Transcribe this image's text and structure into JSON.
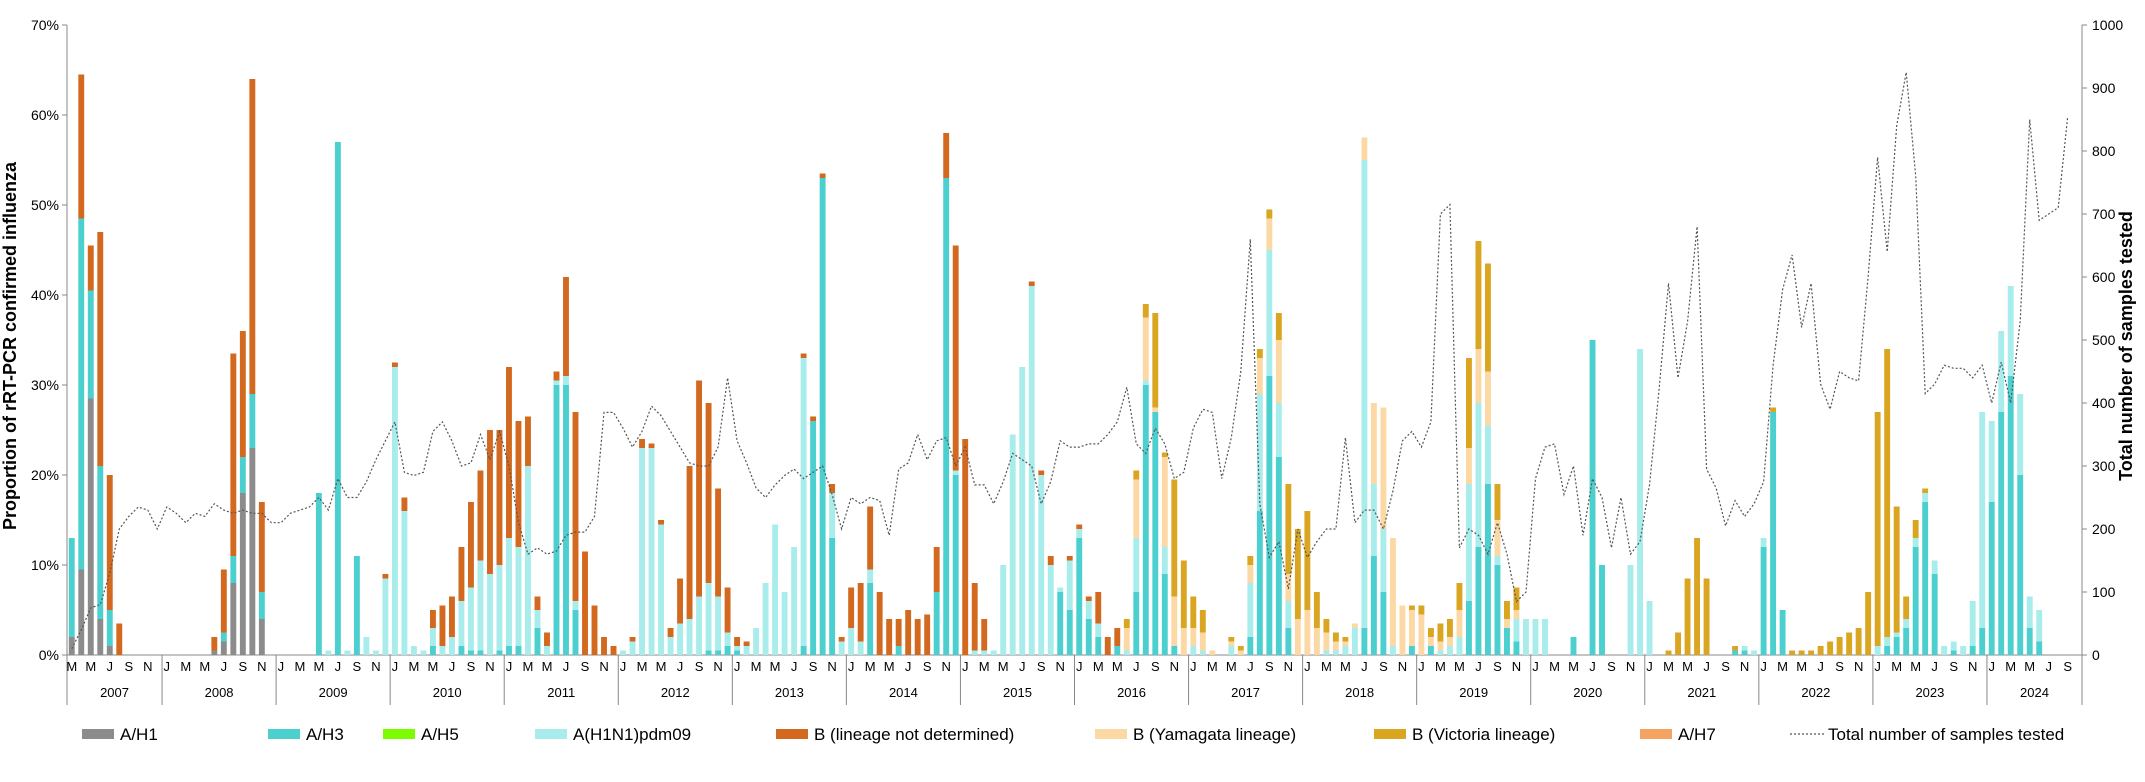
{
  "chart_data": {
    "type": "bar",
    "subtype": "stacked bar with secondary line",
    "ylabel_left": "Proportion of rRT-PCR confirmed influenza",
    "ylabel_right": "Total number of samples tested",
    "ylim_left": [
      0,
      70
    ],
    "ylim_right": [
      0,
      1000
    ],
    "yticks_left": [
      "0%",
      "10%",
      "20%",
      "30%",
      "40%",
      "50%",
      "60%",
      "70%"
    ],
    "yticks_right": [
      "0",
      "100",
      "200",
      "300",
      "400",
      "500",
      "600",
      "700",
      "800",
      "900",
      "1000"
    ],
    "month_labels": [
      "J",
      "M",
      "M",
      "J",
      "S",
      "N"
    ],
    "years": [
      "2007",
      "2008",
      "2009",
      "2010",
      "2011",
      "2012",
      "2013",
      "2014",
      "2015",
      "2016",
      "2017",
      "2018",
      "2019",
      "2020",
      "2021",
      "2022",
      "2023",
      "2024"
    ],
    "first_year_start_month": 3,
    "last_year_end_month": 10,
    "legend_position": "bottom",
    "colors": {
      "A/H1": "#8c8c8c",
      "A/H3": "#4ccfcf",
      "A/H5": "#7cfc00",
      "A(H1N1)pdm09": "#a8ecec",
      "B (lineage not determined)": "#d2691e",
      "B (Yamagata lineage)": "#fcd9a4",
      "B (Victoria lineage)": "#daa520",
      "A/H7": "#f4a460",
      "line": "#555555"
    },
    "series": [
      {
        "name": "A/H1",
        "color": "#8c8c8c",
        "values_by_index": {
          "0": 2,
          "1": 9.5,
          "2": 28.5,
          "3": 4,
          "4": 1,
          "15": 0.5,
          "16": 1.5,
          "17": 8,
          "18": 18,
          "19": 23,
          "20": 4
        }
      },
      {
        "name": "A/H3",
        "color": "#4ccfcf",
        "values_by_index": {
          "0": 11,
          "1": 39,
          "2": 12,
          "3": 17,
          "4": 4,
          "16": 1,
          "17": 3,
          "18": 4,
          "19": 6,
          "20": 3,
          "26": 18,
          "28": 57,
          "30": 11,
          "38": 1,
          "41": 1,
          "42": 0.5,
          "43": 0.5,
          "45": 0.5,
          "46": 1,
          "47": 1,
          "49": 3,
          "51": 30,
          "52": 30,
          "53": 5,
          "67": 0.5,
          "68": 0.5,
          "69": 1,
          "70": 0.5,
          "77": 1,
          "78": 26,
          "79": 53,
          "80": 13,
          "84": 8,
          "87": 1,
          "91": 7,
          "92": 53,
          "93": 20,
          "104": 7,
          "105": 5,
          "106": 13,
          "107": 4,
          "108": 2,
          "110": 1,
          "112": 7,
          "113": 30,
          "114": 27,
          "115": 9,
          "116": 1,
          "124": 2,
          "125": 16,
          "126": 31,
          "127": 22,
          "128": 3,
          "136": 3,
          "137": 11,
          "138": 7,
          "141": 1,
          "143": 1,
          "147": 6,
          "148": 12,
          "149": 19,
          "150": 10,
          "151": 3,
          "152": 1.5,
          "158": 2,
          "160": 35,
          "161": 10,
          "175": 0.5,
          "176": 0.5,
          "178": 12,
          "179": 27,
          "180": 5,
          "191": 1,
          "192": 2,
          "193": 3,
          "194": 12,
          "195": 17,
          "196": 9,
          "198": 0.5,
          "200": 1,
          "201": 3,
          "202": 17,
          "203": 27,
          "204": 31,
          "205": 20,
          "206": 3,
          "207": 1.5
        }
      },
      {
        "name": "A/H5",
        "color": "#7cfc00",
        "values_by_index": {}
      },
      {
        "name": "A(H1N1)pdm09",
        "color": "#a8ecec",
        "values_by_index": {
          "27": 0.5,
          "29": 0.5,
          "31": 2,
          "32": 0.5,
          "33": 8.5,
          "34": 32,
          "35": 16,
          "36": 1,
          "37": 0.5,
          "38": 2,
          "39": 1,
          "40": 2,
          "41": 5,
          "42": 7,
          "43": 10,
          "44": 9,
          "45": 9.5,
          "46": 12,
          "47": 11,
          "48": 21,
          "49": 2,
          "50": 1,
          "51": 0.5,
          "52": 1,
          "53": 1,
          "58": 0.5,
          "59": 1.5,
          "60": 23,
          "61": 23,
          "62": 14.5,
          "63": 2,
          "64": 3.5,
          "65": 4,
          "66": 6.5,
          "67": 7.5,
          "68": 6,
          "69": 1.5,
          "70": 0.5,
          "71": 1,
          "72": 3,
          "73": 8,
          "74": 14.5,
          "75": 7,
          "76": 12,
          "77": 32,
          "80": 5,
          "81": 1.5,
          "82": 3,
          "83": 1.5,
          "84": 1.5,
          "93": 0.5,
          "95": 0.5,
          "96": 0.5,
          "97": 0.5,
          "98": 10,
          "99": 24.5,
          "100": 32,
          "101": 41,
          "102": 20,
          "103": 10,
          "104": 0.5,
          "105": 5.5,
          "106": 1,
          "107": 2,
          "108": 1.5,
          "111": 0.5,
          "112": 6,
          "113": 0.5,
          "115": 3,
          "118": 1,
          "119": 0.5,
          "122": 1,
          "124": 6,
          "125": 13,
          "126": 14,
          "127": 6,
          "128": 3,
          "132": 0.5,
          "133": 0.5,
          "134": 1,
          "135": 3,
          "136": 52,
          "137": 8,
          "138": 7,
          "139": 1,
          "144": 0.5,
          "145": 1,
          "146": 2,
          "147": 13,
          "148": 16,
          "149": 6.5,
          "150": 1,
          "152": 2.5,
          "153": 4,
          "154": 4,
          "155": 4,
          "164": 10,
          "165": 34,
          "166": 6,
          "176": 0.5,
          "177": 0.5,
          "178": 1,
          "190": 1,
          "191": 1,
          "192": 0.5,
          "193": 1,
          "194": 1,
          "195": 1,
          "196": 1.5,
          "197": 1,
          "198": 1,
          "199": 1,
          "200": 5,
          "201": 24,
          "202": 9,
          "203": 9,
          "204": 10,
          "205": 9,
          "206": 3.5,
          "207": 3.5
        }
      },
      {
        "name": "B (lineage not determined)",
        "color": "#d2691e",
        "values_by_index": {
          "0": 0,
          "1": 16,
          "2": 5,
          "3": 26,
          "4": 15,
          "5": 3.5,
          "15": 1.5,
          "16": 7,
          "17": 22.5,
          "18": 14,
          "19": 35,
          "20": 10,
          "33": 0.5,
          "34": 0.5,
          "35": 1.5,
          "38": 2,
          "39": 4.5,
          "40": 4.5,
          "41": 6,
          "42": 9.5,
          "43": 10,
          "44": 16,
          "45": 15,
          "46": 19,
          "47": 14,
          "48": 5.5,
          "49": 1.5,
          "50": 1.5,
          "51": 1,
          "52": 11,
          "53": 21,
          "54": 11.5,
          "55": 5.5,
          "56": 2,
          "57": 1,
          "59": 0.5,
          "60": 1,
          "61": 0.5,
          "62": 0.5,
          "63": 1,
          "64": 5,
          "65": 17,
          "66": 24,
          "67": 20,
          "68": 12,
          "69": 5,
          "70": 1,
          "71": 0.5,
          "77": 0.5,
          "78": 0.5,
          "79": 0.5,
          "80": 1,
          "81": 0.5,
          "82": 4.5,
          "83": 6.5,
          "84": 7,
          "85": 7,
          "86": 4,
          "87": 3,
          "88": 5,
          "89": 4,
          "90": 4.5,
          "91": 5,
          "92": 5,
          "93": 25,
          "94": 24,
          "95": 7.5,
          "96": 3.5,
          "97": 0,
          "101": 0.5,
          "102": 0.5,
          "103": 1,
          "104": 0,
          "105": 0.5,
          "106": 0.5,
          "107": 0.5,
          "108": 3.5,
          "109": 2,
          "110": 2
        }
      },
      {
        "name": "B (Yamagata lineage)",
        "color": "#fcd9a4",
        "values_by_index": {
          "111": 2.5,
          "112": 6.5,
          "113": 7,
          "114": 0.5,
          "115": 10,
          "116": 5.5,
          "117": 3,
          "118": 2,
          "119": 2,
          "120": 0.5,
          "122": 0.5,
          "123": 0.5,
          "124": 2,
          "125": 4,
          "126": 3.5,
          "127": 7,
          "128": 3,
          "129": 4,
          "130": 5,
          "131": 3,
          "132": 2,
          "133": 1,
          "134": 0.5,
          "135": 0.5,
          "136": 2.5,
          "137": 9,
          "138": 13.5,
          "139": 12,
          "140": 5.5,
          "141": 4,
          "142": 4.5,
          "143": 1,
          "144": 1,
          "145": 1,
          "146": 3,
          "147": 4,
          "148": 6,
          "149": 6,
          "150": 4,
          "151": 1,
          "152": 1
        }
      },
      {
        "name": "B (Victoria lineage)",
        "color": "#daa520",
        "values_by_index": {
          "111": 1,
          "112": 1,
          "113": 1.5,
          "114": 10.5,
          "115": 0.5,
          "116": 13,
          "117": 7.5,
          "118": 3.5,
          "119": 2.5,
          "120": 0,
          "122": 0.5,
          "123": 0.5,
          "124": 1,
          "125": 1,
          "126": 1,
          "127": 3,
          "128": 10,
          "129": 10,
          "130": 11,
          "131": 4,
          "132": 1.5,
          "133": 1,
          "134": 0.5,
          "136": 0,
          "137": 0,
          "141": 0.5,
          "142": 1,
          "143": 1,
          "144": 2,
          "145": 2,
          "146": 3,
          "147": 10,
          "148": 12,
          "149": 12,
          "150": 4,
          "151": 2,
          "152": 2.5,
          "160": 0,
          "168": 0.5,
          "169": 2.5,
          "170": 8.5,
          "171": 13,
          "172": 8.5,
          "175": 0.5,
          "179": 0.5,
          "181": 0.5,
          "182": 0.5,
          "183": 0.5,
          "184": 1,
          "185": 1.5,
          "186": 2,
          "187": 2.5,
          "188": 3,
          "189": 7,
          "190": 26,
          "191": 32,
          "192": 14,
          "193": 2.5,
          "194": 2,
          "195": 0.5
        }
      },
      {
        "name": "A/H7",
        "color": "#f4a460",
        "values_by_index": {}
      }
    ],
    "line": {
      "name": "Total number of samples tested",
      "values": [
        10,
        40,
        75,
        80,
        130,
        200,
        220,
        235,
        230,
        200,
        235,
        225,
        210,
        225,
        220,
        240,
        230,
        225,
        230,
        225,
        225,
        210,
        210,
        225,
        230,
        235,
        250,
        230,
        280,
        250,
        250,
        275,
        310,
        340,
        370,
        290,
        285,
        290,
        355,
        370,
        340,
        300,
        305,
        350,
        310,
        355,
        300,
        210,
        160,
        170,
        160,
        165,
        190,
        195,
        195,
        220,
        385,
        385,
        360,
        330,
        355,
        395,
        380,
        355,
        330,
        305,
        300,
        300,
        330,
        440,
        340,
        305,
        265,
        250,
        270,
        285,
        295,
        280,
        290,
        300,
        255,
        200,
        250,
        240,
        250,
        245,
        190,
        295,
        305,
        350,
        310,
        340,
        345,
        300,
        330,
        270,
        270,
        240,
        275,
        320,
        310,
        300,
        240,
        275,
        340,
        330,
        330,
        335,
        335,
        350,
        370,
        425,
        335,
        320,
        360,
        335,
        280,
        290,
        360,
        390,
        385,
        280,
        345,
        450,
        660,
        240,
        155,
        180,
        105,
        200,
        155,
        180,
        200,
        200,
        345,
        210,
        230,
        230,
        200,
        260,
        340,
        355,
        330,
        370,
        700,
        715,
        170,
        200,
        190,
        160,
        210,
        160,
        85,
        100,
        280,
        330,
        335,
        255,
        300,
        190,
        280,
        250,
        170,
        250,
        160,
        180,
        270,
        420,
        590,
        440,
        530,
        680,
        295,
        265,
        205,
        245,
        220,
        240,
        275,
        460,
        580,
        635,
        520,
        590,
        430,
        390,
        450,
        440,
        435,
        600,
        790,
        640,
        840,
        925,
        760,
        415,
        430,
        460,
        455,
        455,
        440,
        460,
        400,
        465,
        400,
        530,
        850,
        690,
        700,
        710,
        855
      ]
    }
  },
  "legend": {
    "items": [
      {
        "label": "A/H1",
        "color": "#8c8c8c",
        "kind": "box"
      },
      {
        "label": "A/H3",
        "color": "#4ccfcf",
        "kind": "box"
      },
      {
        "label": "A/H5",
        "color": "#7cfc00",
        "kind": "box"
      },
      {
        "label": "A(H1N1)pdm09",
        "color": "#a8ecec",
        "kind": "box"
      },
      {
        "label": "B (lineage not determined)",
        "color": "#d2691e",
        "kind": "box"
      },
      {
        "label": "B (Yamagata lineage)",
        "color": "#fcd9a4",
        "kind": "box"
      },
      {
        "label": "B (Victoria lineage)",
        "color": "#daa520",
        "kind": "box"
      },
      {
        "label": "A/H7",
        "color": "#f4a460",
        "kind": "box"
      },
      {
        "label": "Total number of samples tested",
        "color": "#555555",
        "kind": "line"
      }
    ]
  }
}
